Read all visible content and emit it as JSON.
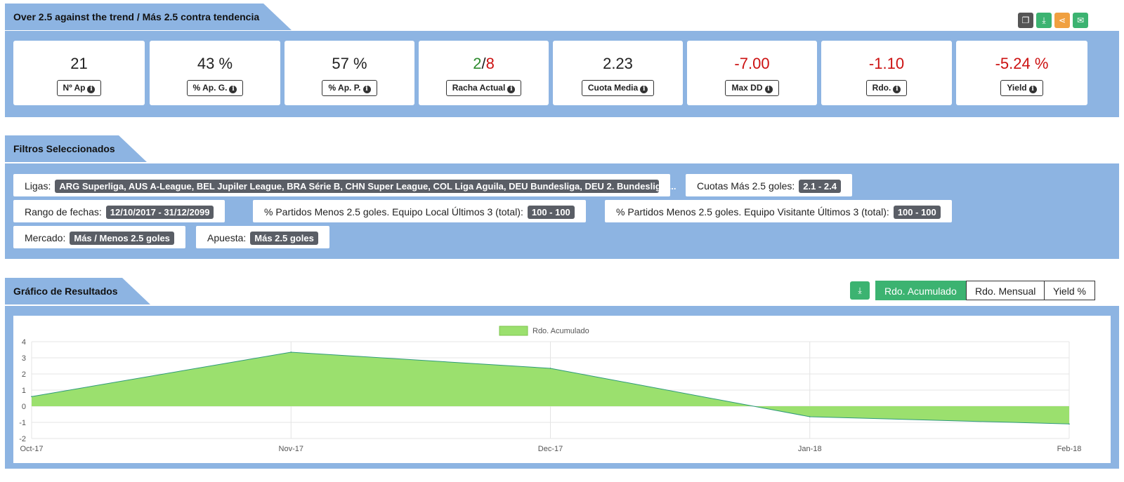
{
  "strategy": {
    "title": "Over 2.5 against the trend / Más 2.5 contra tendencia",
    "actions": [
      "copy-icon",
      "download-icon",
      "share-icon",
      "email-icon"
    ],
    "stats": [
      {
        "value": "21",
        "label": "Nº Ap",
        "color": "#222222"
      },
      {
        "value": "43 %",
        "label": "% Ap. G.",
        "color": "#222222"
      },
      {
        "value": "57 %",
        "label": "% Ap. P.",
        "color": "#222222"
      },
      {
        "value_a": "2",
        "value_sep": "/",
        "value_b": "8",
        "label": "Racha Actual"
      },
      {
        "value": "2.23",
        "label": "Cuota Media",
        "color": "#222222"
      },
      {
        "value": "-7.00",
        "label": "Max DD",
        "color": "#cc1111"
      },
      {
        "value": "-1.10",
        "label": "Rdo.",
        "color": "#cc1111"
      },
      {
        "value": "-5.24 %",
        "label": "Yield",
        "color": "#cc1111"
      }
    ]
  },
  "filters": {
    "title": "Filtros Seleccionados",
    "items": [
      {
        "label": "Ligas:",
        "value": "ARG Superliga, AUS A-League, BEL Jupiler League, BRA Série B, CHN Super League, COL Liga Aguila, DEU Bundesliga, DEU 2. Bundesliga ..."
      },
      {
        "label": "Cuotas Más 2.5 goles:",
        "value": "2.1 - 2.4"
      },
      {
        "label": "Rango de fechas:",
        "value": "12/10/2017 - 31/12/2099"
      },
      {
        "label": "% Partidos Menos 2.5 goles. Equipo Local Últimos 3 (total):",
        "value": "100 - 100"
      },
      {
        "label": "% Partidos Menos 2.5 goles. Equipo Visitante Últimos 3 (total):",
        "value": "100 - 100"
      },
      {
        "label": "Mercado:",
        "value": "Más / Menos 2.5 goles"
      },
      {
        "label": "Apuesta:",
        "value": "Más 2.5 goles"
      }
    ]
  },
  "results": {
    "title": "Gráfico de Resultados",
    "tabs": [
      "Rdo. Acumulado",
      "Rdo. Mensual",
      "Yield %"
    ],
    "active_tab": 0
  },
  "chart_data": {
    "type": "area",
    "x": [
      "Oct-17",
      "Nov-17",
      "Dec-17",
      "Jan-18",
      "Feb-18"
    ],
    "series": [
      {
        "name": "Rdo. Acumulado",
        "values": [
          0.6,
          3.35,
          2.35,
          -0.65,
          -1.1
        ],
        "color": "#9be06e",
        "line": "#2e9a7a"
      }
    ],
    "ylim": [
      -2,
      4
    ],
    "yticks": [
      4,
      3,
      2,
      1,
      0,
      -1,
      -2
    ],
    "grid": true,
    "legend": "top-center"
  }
}
